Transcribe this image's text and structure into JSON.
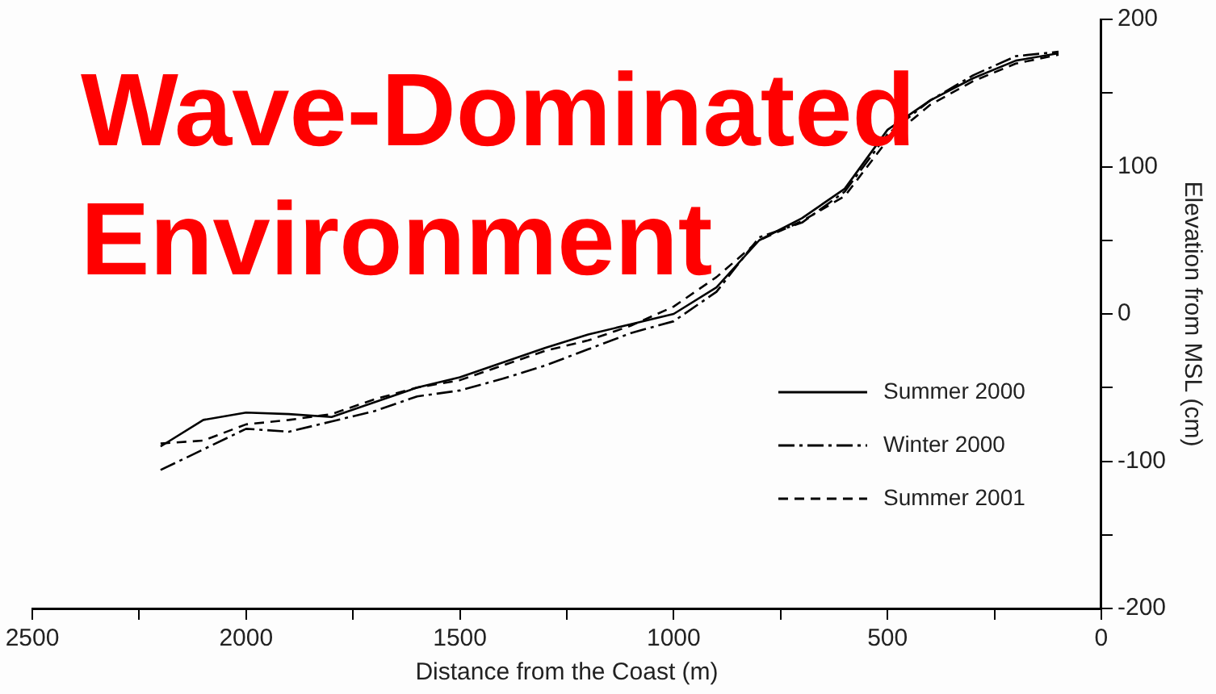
{
  "chart_data": {
    "type": "line",
    "title": "Wave-Dominated Environment",
    "xlabel": "Distance from the Coast (m)",
    "ylabel": "Elevation from MSL (cm)",
    "x": [
      2200,
      2100,
      2000,
      1900,
      1800,
      1700,
      1600,
      1500,
      1400,
      1300,
      1200,
      1100,
      1000,
      900,
      800,
      700,
      600,
      500,
      400,
      300,
      200,
      100
    ],
    "series": [
      {
        "name": "Summer 2000",
        "color": "#000000",
        "line_style": "solid",
        "values": [
          -90,
          -72,
          -67,
          -68,
          -70,
          -60,
          -50,
          -43,
          -33,
          -23,
          -14,
          -7,
          0,
          18,
          50,
          65,
          85,
          125,
          145,
          160,
          172,
          177
        ]
      },
      {
        "name": "Winter 2000",
        "color": "#000000",
        "line_style": "dashdot",
        "values": [
          -106,
          -92,
          -78,
          -80,
          -73,
          -66,
          -56,
          -52,
          -44,
          -35,
          -24,
          -13,
          -5,
          15,
          52,
          62,
          83,
          122,
          145,
          162,
          175,
          178
        ]
      },
      {
        "name": "Summer 2001",
        "color": "#000000",
        "line_style": "dashed",
        "values": [
          -88,
          -86,
          -75,
          -72,
          -68,
          -58,
          -50,
          -45,
          -35,
          -25,
          -18,
          -8,
          5,
          25,
          50,
          63,
          80,
          118,
          142,
          158,
          170,
          176
        ]
      }
    ],
    "xlim": [
      2500,
      0
    ],
    "xticks": [
      2500,
      {
        "value": 2250,
        "label": null
      },
      2000,
      {
        "value": 1750,
        "label": null
      },
      1500,
      {
        "value": 1250,
        "label": null
      },
      1000,
      {
        "value": 750,
        "label": null
      },
      500,
      {
        "value": 250,
        "label": null
      },
      0
    ],
    "ylim": [
      -200,
      200
    ],
    "yticks": [
      -200,
      {
        "value": -150,
        "label": null
      },
      -100,
      {
        "value": -50,
        "label": null
      },
      0,
      {
        "value": 50,
        "label": null
      },
      100,
      {
        "value": 150,
        "label": null
      },
      200
    ],
    "grid": false,
    "legend": "bottom right",
    "marker": "none"
  }
}
